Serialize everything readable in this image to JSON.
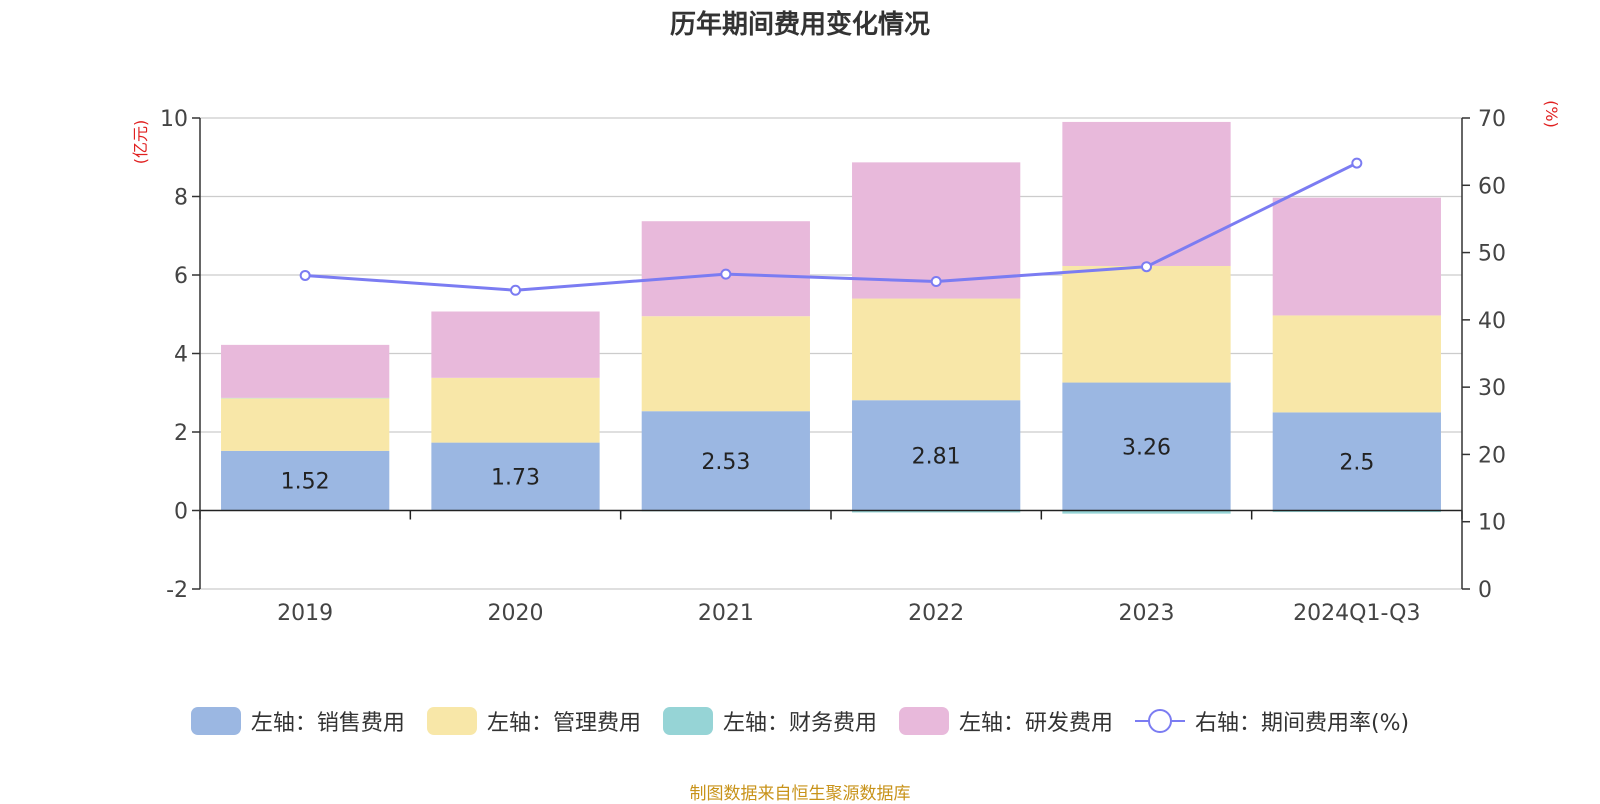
{
  "chart_data": {
    "type": "bar",
    "title": "历年期间费用变化情况",
    "left_axis_unit": "(亿元)",
    "right_axis_unit": "(%)",
    "categories": [
      "2019",
      "2020",
      "2021",
      "2022",
      "2023",
      "2024Q1-Q3"
    ],
    "ylim_left": [
      -2,
      10
    ],
    "yticks_left": [
      -2,
      0,
      2,
      4,
      6,
      8,
      10
    ],
    "ylim_right": [
      0,
      70
    ],
    "yticks_right": [
      0,
      10,
      20,
      30,
      40,
      50,
      60,
      70
    ],
    "stacked": true,
    "series": [
      {
        "name": "左轴：销售费用",
        "axis": "left",
        "color": "#9bb7e2",
        "values": [
          1.52,
          1.73,
          2.53,
          2.81,
          3.26,
          2.5
        ],
        "show_labels": true
      },
      {
        "name": "左轴：管理费用",
        "axis": "left",
        "color": "#f8e7a8",
        "values": [
          1.34,
          1.65,
          2.42,
          2.59,
          2.97,
          2.47
        ],
        "show_labels": false
      },
      {
        "name": "左轴：财务费用",
        "axis": "left",
        "color": "#96d4d6",
        "values": [
          0.01,
          -0.01,
          -0.02,
          -0.05,
          -0.08,
          -0.04
        ],
        "show_labels": false
      },
      {
        "name": "左轴：研发费用",
        "axis": "left",
        "color": "#e8b9db",
        "values": [
          1.35,
          1.69,
          2.42,
          3.47,
          3.67,
          3.0
        ],
        "show_labels": false
      },
      {
        "name": "右轴：期间费用率(%)",
        "axis": "right",
        "type": "line",
        "color": "#7b7cf2",
        "values": [
          46.6,
          44.4,
          46.8,
          45.7,
          47.9,
          63.3
        ]
      }
    ],
    "grid": true,
    "legend_position": "bottom"
  },
  "source_note": "制图数据来自恒生聚源数据库"
}
